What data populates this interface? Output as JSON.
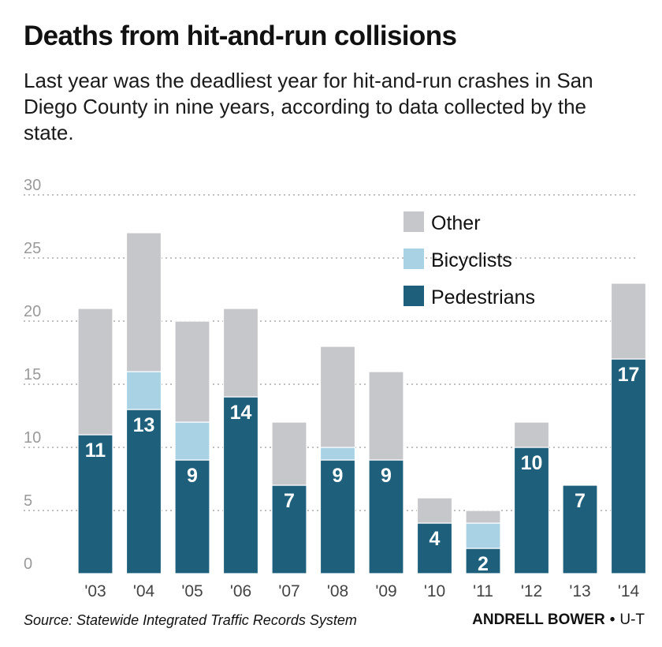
{
  "header": {
    "title": "Deaths from hit-and-run collisions",
    "subtitle": "Last year was the deadliest year for hit-and-run crashes in San Diego County in nine years, according to data collected by the state."
  },
  "footer": {
    "source": "Source: Statewide Integrated Traffic Records System",
    "author": "ANDRELL BOWER",
    "separator": "•",
    "org": "U-T"
  },
  "chart_data": {
    "type": "bar",
    "stacked": true,
    "categories": [
      "'03",
      "'04",
      "'05",
      "'06",
      "'07",
      "'08",
      "'09",
      "'10",
      "'11",
      "'12",
      "'13",
      "'14"
    ],
    "series": [
      {
        "name": "Pedestrians",
        "color": "#1e5f7b",
        "values": [
          11,
          13,
          9,
          14,
          7,
          9,
          9,
          4,
          2,
          10,
          7,
          17
        ],
        "labels_shown": true
      },
      {
        "name": "Bicyclists",
        "color": "#a9d3e5",
        "values": [
          0,
          3,
          3,
          0,
          0,
          1,
          0,
          0,
          2,
          0,
          0,
          0
        ]
      },
      {
        "name": "Other",
        "color": "#c6c7ca",
        "values": [
          10,
          11,
          8,
          7,
          5,
          8,
          7,
          2,
          1,
          2,
          0,
          6
        ]
      }
    ],
    "y_ticks": [
      0,
      5,
      10,
      15,
      20,
      25,
      30
    ],
    "ylim": [
      0,
      30
    ],
    "grid": "dotted horizontal",
    "legend_position": "top-right",
    "legend_order": [
      "Other",
      "Bicyclists",
      "Pedestrians"
    ],
    "value_label_color": "#ffffff",
    "tick_label_color": "#9a9a9a"
  }
}
